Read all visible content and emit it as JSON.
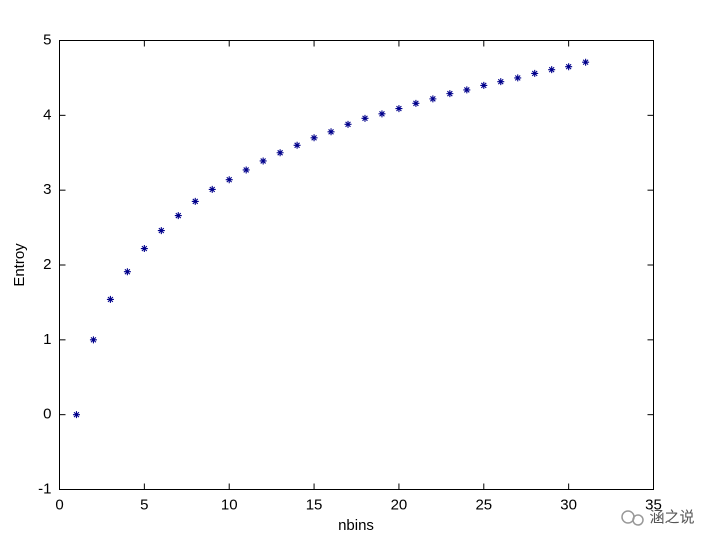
{
  "chart_data": {
    "type": "scatter",
    "x_label": "nbins",
    "y_label": "Entroy",
    "x": [
      1,
      2,
      3,
      4,
      5,
      6,
      7,
      8,
      9,
      10,
      11,
      12,
      13,
      14,
      15,
      16,
      17,
      18,
      19,
      20,
      21,
      22,
      23,
      24,
      25,
      26,
      27,
      28,
      29,
      30,
      31
    ],
    "series": [
      {
        "color": "#00008b",
        "values": [
          0,
          1.0,
          1.54,
          1.91,
          2.22,
          2.46,
          2.66,
          2.85,
          3.01,
          3.14,
          3.27,
          3.39,
          3.5,
          3.6,
          3.7,
          3.78,
          3.88,
          3.96,
          4.02,
          4.09,
          4.16,
          4.22,
          4.29,
          4.34,
          4.4,
          4.45,
          4.5,
          4.56,
          4.61,
          4.65,
          4.71
        ]
      }
    ],
    "xlim": [
      0,
      35
    ],
    "xticks": [
      0,
      5,
      10,
      15,
      20,
      25,
      30,
      35
    ],
    "ylim": [
      -1,
      5
    ],
    "yticks": [
      -1,
      0,
      1,
      2,
      3,
      4,
      5
    ],
    "grid": false
  },
  "watermark": "涵之说"
}
